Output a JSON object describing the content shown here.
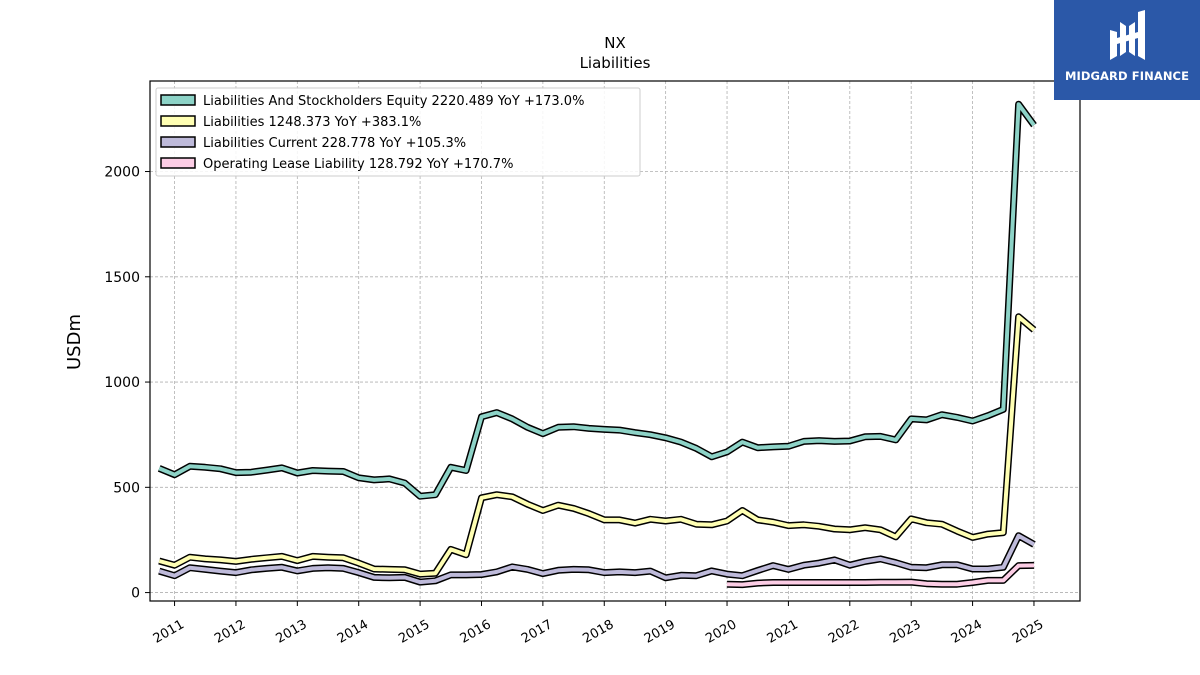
{
  "chart_data": {
    "type": "line",
    "title": "NX",
    "subtitle": "Liabilities",
    "xlabel": "",
    "ylabel": "USDm",
    "xlim": [
      2010.6,
      2025.75
    ],
    "ylim": [
      -40,
      2430
    ],
    "x_ticks": [
      2011,
      2012,
      2013,
      2014,
      2015,
      2016,
      2017,
      2018,
      2019,
      2020,
      2021,
      2022,
      2023,
      2024,
      2025
    ],
    "x_tick_labels": [
      "2011",
      "2012",
      "2013",
      "2014",
      "2015",
      "2016",
      "2017",
      "2018",
      "2019",
      "2020",
      "2021",
      "2022",
      "2023",
      "2024",
      "2025"
    ],
    "y_ticks": [
      0,
      500,
      1000,
      1500,
      2000
    ],
    "y_tick_labels": [
      "0",
      "500",
      "1000",
      "1500",
      "2000"
    ],
    "grid": true,
    "legend_position": "top-left",
    "series": [
      {
        "name": "Liabilities And Stockholders Equity",
        "legend_label": "Liabilities And Stockholders Equity  2220.489 YoY +173.0%",
        "color": "#8dd3c7",
        "x": [
          2010.75,
          2011.0,
          2011.25,
          2011.5,
          2011.75,
          2012.0,
          2012.25,
          2012.5,
          2012.75,
          2013.0,
          2013.25,
          2013.5,
          2013.75,
          2014.0,
          2014.25,
          2014.5,
          2014.75,
          2015.0,
          2015.25,
          2015.5,
          2015.75,
          2016.0,
          2016.25,
          2016.5,
          2016.75,
          2017.0,
          2017.25,
          2017.5,
          2017.75,
          2018.0,
          2018.25,
          2018.5,
          2018.75,
          2019.0,
          2019.25,
          2019.5,
          2019.75,
          2020.0,
          2020.25,
          2020.5,
          2020.75,
          2021.0,
          2021.25,
          2021.5,
          2021.75,
          2022.0,
          2022.25,
          2022.5,
          2022.75,
          2023.0,
          2023.25,
          2023.5,
          2023.75,
          2024.0,
          2024.25,
          2024.5,
          2024.75,
          2025.0
        ],
        "values": [
          590,
          560,
          600,
          595,
          588,
          570,
          572,
          582,
          592,
          568,
          580,
          577,
          575,
          545,
          535,
          540,
          520,
          458,
          465,
          595,
          580,
          835,
          855,
          825,
          785,
          755,
          785,
          788,
          780,
          775,
          772,
          760,
          750,
          735,
          715,
          685,
          645,
          668,
          715,
          688,
          692,
          695,
          718,
          722,
          718,
          720,
          740,
          742,
          725,
          825,
          820,
          845,
          832,
          815,
          840,
          870,
          2320,
          2220
        ]
      },
      {
        "name": "Liabilities",
        "legend_label": "Liabilities  1248.373 YoY +383.1%",
        "color": "#ffffb3",
        "x": [
          2010.75,
          2011.0,
          2011.25,
          2011.5,
          2011.75,
          2012.0,
          2012.25,
          2012.5,
          2012.75,
          2013.0,
          2013.25,
          2013.5,
          2013.75,
          2014.0,
          2014.25,
          2014.5,
          2014.75,
          2015.0,
          2015.25,
          2015.5,
          2015.75,
          2016.0,
          2016.25,
          2016.5,
          2016.75,
          2017.0,
          2017.25,
          2017.5,
          2017.75,
          2018.0,
          2018.25,
          2018.5,
          2018.75,
          2019.0,
          2019.25,
          2019.5,
          2019.75,
          2020.0,
          2020.25,
          2020.5,
          2020.75,
          2021.0,
          2021.25,
          2021.5,
          2021.75,
          2022.0,
          2022.25,
          2022.5,
          2022.75,
          2023.0,
          2023.25,
          2023.5,
          2023.75,
          2024.0,
          2024.25,
          2024.5,
          2024.75,
          2025.0
        ],
        "values": [
          150,
          130,
          168,
          160,
          155,
          148,
          158,
          165,
          172,
          152,
          172,
          168,
          165,
          140,
          112,
          110,
          108,
          88,
          92,
          205,
          180,
          450,
          465,
          455,
          420,
          390,
          415,
          400,
          375,
          345,
          345,
          330,
          348,
          340,
          348,
          325,
          322,
          340,
          390,
          345,
          335,
          318,
          322,
          315,
          302,
          298,
          308,
          298,
          265,
          350,
          332,
          325,
          292,
          262,
          278,
          285,
          1310,
          1248
        ]
      },
      {
        "name": "Liabilities Current",
        "legend_label": "Liabilities Current  228.778 YoY +105.3%",
        "color": "#bebada",
        "x": [
          2010.75,
          2011.0,
          2011.25,
          2011.5,
          2011.75,
          2012.0,
          2012.25,
          2012.5,
          2012.75,
          2013.0,
          2013.25,
          2013.5,
          2013.75,
          2014.0,
          2014.25,
          2014.5,
          2014.75,
          2015.0,
          2015.25,
          2015.5,
          2015.75,
          2016.0,
          2016.25,
          2016.5,
          2016.75,
          2017.0,
          2017.25,
          2017.5,
          2017.75,
          2018.0,
          2018.25,
          2018.5,
          2018.75,
          2019.0,
          2019.25,
          2019.5,
          2019.75,
          2020.0,
          2020.25,
          2020.5,
          2020.75,
          2021.0,
          2021.25,
          2021.5,
          2021.75,
          2022.0,
          2022.25,
          2022.5,
          2022.75,
          2023.0,
          2023.25,
          2023.5,
          2023.75,
          2024.0,
          2024.25,
          2024.5,
          2024.75,
          2025.0
        ],
        "values": [
          102,
          80,
          118,
          110,
          102,
          95,
          108,
          115,
          120,
          103,
          115,
          118,
          115,
          95,
          72,
          70,
          72,
          50,
          56,
          84,
          84,
          86,
          98,
          122,
          110,
          90,
          106,
          110,
          108,
          95,
          98,
          95,
          102,
          70,
          82,
          80,
          103,
          88,
          80,
          105,
          128,
          110,
          130,
          140,
          155,
          130,
          148,
          160,
          142,
          120,
          118,
          132,
          132,
          112,
          112,
          120,
          270,
          229
        ]
      },
      {
        "name": "Operating Lease Liability",
        "legend_label": "Operating Lease Liability  128.792 YoY +170.7%",
        "color": "#fccde5",
        "x": [
          2020.0,
          2020.25,
          2020.5,
          2020.75,
          2021.0,
          2021.25,
          2021.5,
          2021.75,
          2022.0,
          2022.25,
          2022.5,
          2022.75,
          2023.0,
          2023.25,
          2023.5,
          2023.75,
          2024.0,
          2024.25,
          2024.5,
          2024.75,
          2025.0
        ],
        "values": [
          40,
          38,
          45,
          48,
          48,
          48,
          48,
          48,
          48,
          48,
          49,
          49,
          50,
          42,
          40,
          40,
          48,
          58,
          58,
          128,
          129
        ]
      }
    ]
  },
  "branding": {
    "logo_text": "MIDGARD FINANCE"
  }
}
